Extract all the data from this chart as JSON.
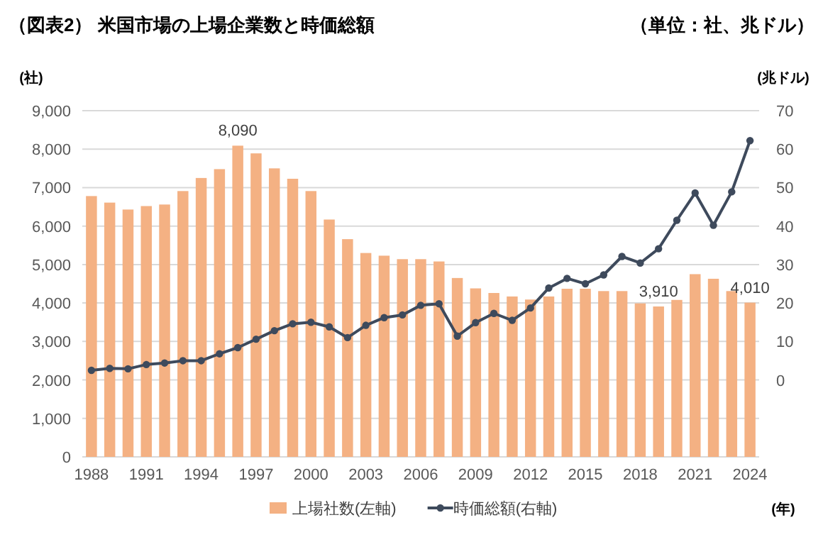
{
  "chart_data": {
    "type": "bar",
    "title": "（図表2） 米国市場の上場企業数と時価総額",
    "subtitle": "（単位：社、兆ドル）",
    "ylabel": "(社)",
    "y2label": "(兆ドル)",
    "xlabel": "(年)",
    "categories": [
      "1988",
      null,
      null,
      "1991",
      null,
      null,
      "1994",
      null,
      null,
      "1997",
      null,
      null,
      "2000",
      null,
      null,
      "2003",
      null,
      null,
      "2006",
      null,
      null,
      "2009",
      null,
      null,
      "2012",
      null,
      null,
      "2015",
      null,
      null,
      "2018",
      null,
      null,
      "2021",
      null,
      null,
      "2024"
    ],
    "series": [
      {
        "name": "上場社数(左軸)",
        "color": "#f4b183",
        "values": [
          6780,
          6610,
          6430,
          6520,
          6560,
          6910,
          7250,
          7480,
          8090,
          7890,
          7500,
          7230,
          6910,
          6170,
          5660,
          5300,
          5230,
          5140,
          5140,
          5080,
          4650,
          4380,
          4260,
          4170,
          4090,
          4170,
          4370,
          4370,
          4310,
          4310,
          3990,
          3910,
          4080,
          4750,
          4630,
          4310,
          4010
        ],
        "value_labels": [
          null,
          null,
          null,
          null,
          null,
          null,
          null,
          null,
          "8,090",
          null,
          null,
          null,
          null,
          null,
          null,
          null,
          null,
          null,
          null,
          null,
          null,
          null,
          null,
          null,
          null,
          null,
          null,
          null,
          null,
          null,
          null,
          "3,910",
          null,
          null,
          null,
          null,
          "4,010"
        ]
      },
      {
        "name": "時価総額(右軸)",
        "type": "line",
        "axis": "y2",
        "color": "#3e4a5c",
        "marker": "circle",
        "values": [
          2.5,
          3.0,
          2.9,
          4.0,
          4.4,
          5.0,
          5.0,
          6.8,
          8.4,
          10.6,
          12.8,
          14.6,
          15.0,
          13.8,
          11.0,
          14.2,
          16.2,
          16.9,
          19.4,
          19.8,
          11.4,
          14.9,
          17.3,
          15.5,
          18.7,
          23.9,
          26.4,
          25.0,
          27.3,
          32.1,
          30.4,
          34.1,
          41.5,
          48.6,
          40.2,
          48.9,
          62.2
        ]
      }
    ],
    "ylim": [
      0,
      9000
    ],
    "yticks": [
      0,
      {
        "value": 1000,
        "label": "1,000"
      },
      {
        "value": 2000,
        "label": "2,000"
      },
      {
        "value": 3000,
        "label": "3,000"
      },
      {
        "value": 4000,
        "label": "4,000"
      },
      {
        "value": 5000,
        "label": "5,000"
      },
      {
        "value": 6000,
        "label": "6,000"
      },
      {
        "value": 7000,
        "label": "7,000"
      },
      {
        "value": 8000,
        "label": "8,000"
      },
      {
        "value": 9000,
        "label": "9,000"
      }
    ],
    "y2lim": [
      -20,
      70
    ],
    "y2ticks": [
      0,
      10,
      20,
      30,
      40,
      50,
      60,
      70
    ],
    "grid": "y",
    "legend": "bottom"
  }
}
